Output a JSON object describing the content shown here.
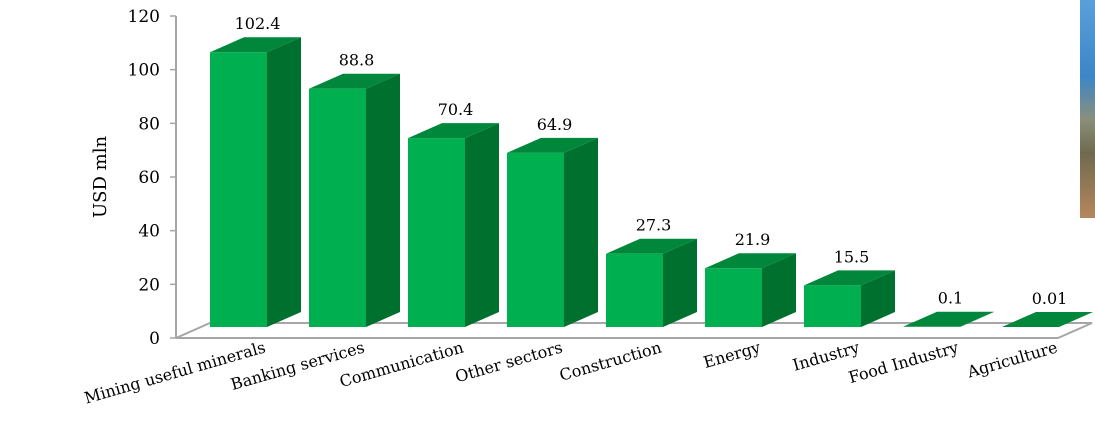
{
  "chart_data": {
    "type": "bar",
    "title": "",
    "xlabel": "",
    "ylabel": "USD mln",
    "ylim": [
      0,
      120
    ],
    "yticks": [
      0,
      20,
      40,
      60,
      80,
      100,
      120
    ],
    "categories": [
      "Mining useful minerals",
      "Banking services",
      "Communication",
      "Other sectors",
      "Construction",
      "Energy",
      "Industry",
      "Food Industry",
      "Agriculture"
    ],
    "values": [
      102.4,
      88.8,
      70.4,
      64.9,
      27.3,
      21.9,
      15.5,
      0.1,
      0.01
    ],
    "value_labels": [
      "102.4",
      "88.8",
      "70.4",
      "64.9",
      "27.3",
      "21.9",
      "15.5",
      "0.1",
      "0.01"
    ],
    "colors": {
      "front": "#00b050",
      "side": "#00702f",
      "top": "#00873b",
      "floor_edge": "#a6a6a6"
    },
    "grid": false,
    "style": "3d-column"
  }
}
